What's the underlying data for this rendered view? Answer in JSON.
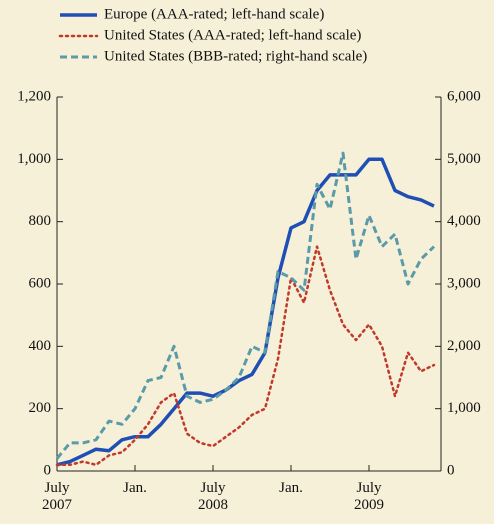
{
  "chart_data": {
    "type": "line",
    "x": [
      "2007-07",
      "2007-08",
      "2007-09",
      "2007-10",
      "2007-11",
      "2007-12",
      "2008-01",
      "2008-02",
      "2008-03",
      "2008-04",
      "2008-05",
      "2008-06",
      "2008-07",
      "2008-08",
      "2008-09",
      "2008-10",
      "2008-11",
      "2008-12",
      "2009-01",
      "2009-02",
      "2009-03",
      "2009-04",
      "2009-05",
      "2009-06",
      "2009-07",
      "2009-08",
      "2009-09",
      "2009-10",
      "2009-11",
      "2009-12"
    ],
    "series": [
      {
        "name": "Europe (AAA-rated; left-hand scale)",
        "color": "#1f4fb4",
        "style": "solid",
        "axis": "y",
        "values": [
          20,
          30,
          50,
          70,
          65,
          100,
          110,
          110,
          150,
          200,
          250,
          250,
          240,
          260,
          290,
          310,
          380,
          620,
          780,
          800,
          900,
          950,
          950,
          950,
          1000,
          1000,
          900,
          880,
          870,
          850
        ]
      },
      {
        "name": "United States (AAA-rated; left-hand scale)",
        "color": "#c0392b",
        "style": "dotted",
        "axis": "y",
        "values": [
          20,
          20,
          30,
          20,
          50,
          60,
          100,
          150,
          220,
          250,
          120,
          90,
          80,
          110,
          140,
          180,
          200,
          360,
          620,
          540,
          720,
          580,
          470,
          420,
          470,
          400,
          240,
          380,
          320,
          340
        ]
      },
      {
        "name": "United States (BBB-rated; right-hand scale)",
        "color": "#5b9aa8",
        "style": "dashed",
        "axis": "y2",
        "values": [
          200,
          450,
          450,
          500,
          800,
          750,
          1000,
          1450,
          1500,
          2000,
          1200,
          1100,
          1150,
          1300,
          1500,
          2000,
          1900,
          3200,
          3100,
          2900,
          4600,
          4200,
          5100,
          3400,
          4100,
          3600,
          3800,
          3000,
          3400,
          3600
        ]
      }
    ],
    "xlim": [
      "2007-07",
      "2010-01"
    ],
    "xticks": [
      {
        "value": "2007-07",
        "label": "July 2007"
      },
      {
        "value": "2008-01",
        "label": "Jan."
      },
      {
        "value": "2008-07",
        "label": "July 2008"
      },
      {
        "value": "2009-01",
        "label": "Jan."
      },
      {
        "value": "2009-07",
        "label": "July 2009"
      }
    ],
    "ylim": [
      0,
      1200
    ],
    "yticks": [
      0,
      200,
      400,
      600,
      800,
      {
        "value": 1000,
        "label": "1,000"
      },
      {
        "value": 1200,
        "label": "1,200"
      }
    ],
    "y2lim": [
      0,
      6000
    ],
    "y2ticks": [
      0,
      {
        "value": 1000,
        "label": "1,000"
      },
      {
        "value": 2000,
        "label": "2,000"
      },
      {
        "value": 3000,
        "label": "3,000"
      },
      {
        "value": 4000,
        "label": "4,000"
      },
      {
        "value": 5000,
        "label": "5,000"
      },
      {
        "value": 6000,
        "label": "6,000"
      }
    ],
    "legend": "top"
  }
}
